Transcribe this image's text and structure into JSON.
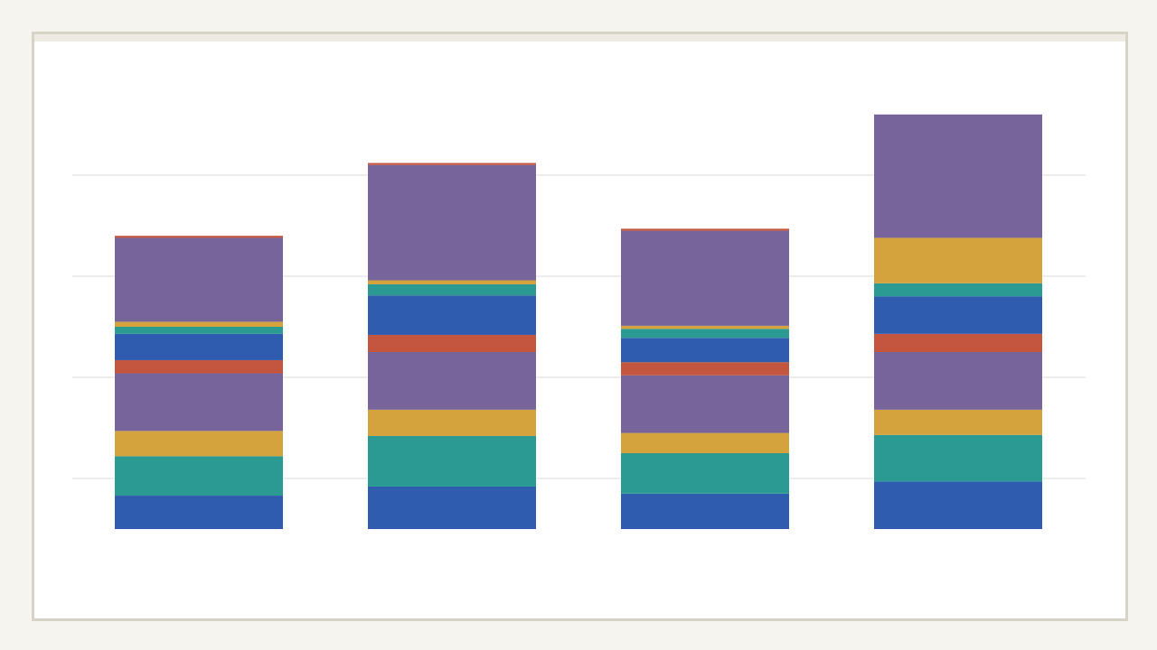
{
  "chart_data": {
    "type": "bar",
    "stacked": true,
    "title": "",
    "xlabel": "",
    "ylabel": "",
    "ylim": [
      0,
      410
    ],
    "grid": true,
    "legend": "none",
    "categories": [
      "",
      "",
      "",
      ""
    ],
    "series": [
      {
        "color": "#305cb0",
        "values": [
          33,
          42,
          35,
          47
        ]
      },
      {
        "color": "#2a9a92",
        "values": [
          39,
          50,
          40,
          46
        ]
      },
      {
        "color": "#d4a33e",
        "values": [
          25,
          26,
          20,
          25
        ]
      },
      {
        "color": "#77649a",
        "values": [
          57,
          57,
          57,
          57
        ]
      },
      {
        "color": "#c4563f",
        "values": [
          13,
          17,
          13,
          18
        ]
      },
      {
        "color": "#305cb0",
        "values": [
          26,
          39,
          24,
          37
        ]
      },
      {
        "color": "#2a9a92",
        "values": [
          7,
          11,
          9,
          13
        ]
      },
      {
        "color": "#d4a33e",
        "values": [
          5,
          4,
          3,
          45
        ]
      },
      {
        "color": "#77649a",
        "values": [
          83,
          114,
          94,
          122
        ]
      },
      {
        "color": "#c4563f",
        "values": [
          2,
          2,
          2,
          0
        ]
      }
    ]
  }
}
